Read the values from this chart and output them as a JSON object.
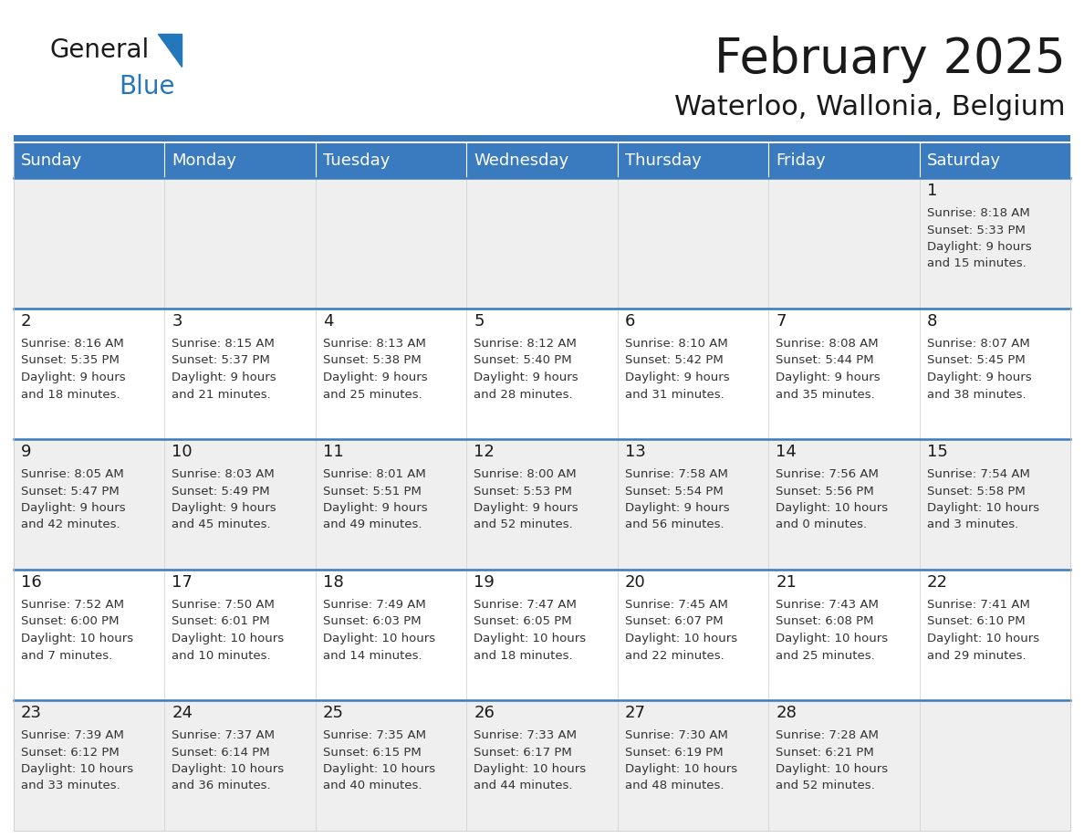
{
  "title": "February 2025",
  "subtitle": "Waterloo, Wallonia, Belgium",
  "header_color": "#3a7abf",
  "header_text_color": "#ffffff",
  "cell_bg_odd": "#efefef",
  "cell_bg_even": "#ffffff",
  "border_color": "#3a7abf",
  "cell_border_color": "#cccccc",
  "days_of_week": [
    "Sunday",
    "Monday",
    "Tuesday",
    "Wednesday",
    "Thursday",
    "Friday",
    "Saturday"
  ],
  "title_fontsize": 38,
  "subtitle_fontsize": 22,
  "header_fontsize": 13,
  "day_num_fontsize": 13,
  "info_fontsize": 9.5,
  "logo_color1": "#1a1a1a",
  "logo_color2": "#2577bb",
  "logo_triangle_color": "#2577bb",
  "weeks": [
    [
      {
        "day": 0,
        "info": ""
      },
      {
        "day": 0,
        "info": ""
      },
      {
        "day": 0,
        "info": ""
      },
      {
        "day": 0,
        "info": ""
      },
      {
        "day": 0,
        "info": ""
      },
      {
        "day": 0,
        "info": ""
      },
      {
        "day": 1,
        "info": "Sunrise: 8:18 AM\nSunset: 5:33 PM\nDaylight: 9 hours\nand 15 minutes."
      }
    ],
    [
      {
        "day": 2,
        "info": "Sunrise: 8:16 AM\nSunset: 5:35 PM\nDaylight: 9 hours\nand 18 minutes."
      },
      {
        "day": 3,
        "info": "Sunrise: 8:15 AM\nSunset: 5:37 PM\nDaylight: 9 hours\nand 21 minutes."
      },
      {
        "day": 4,
        "info": "Sunrise: 8:13 AM\nSunset: 5:38 PM\nDaylight: 9 hours\nand 25 minutes."
      },
      {
        "day": 5,
        "info": "Sunrise: 8:12 AM\nSunset: 5:40 PM\nDaylight: 9 hours\nand 28 minutes."
      },
      {
        "day": 6,
        "info": "Sunrise: 8:10 AM\nSunset: 5:42 PM\nDaylight: 9 hours\nand 31 minutes."
      },
      {
        "day": 7,
        "info": "Sunrise: 8:08 AM\nSunset: 5:44 PM\nDaylight: 9 hours\nand 35 minutes."
      },
      {
        "day": 8,
        "info": "Sunrise: 8:07 AM\nSunset: 5:45 PM\nDaylight: 9 hours\nand 38 minutes."
      }
    ],
    [
      {
        "day": 9,
        "info": "Sunrise: 8:05 AM\nSunset: 5:47 PM\nDaylight: 9 hours\nand 42 minutes."
      },
      {
        "day": 10,
        "info": "Sunrise: 8:03 AM\nSunset: 5:49 PM\nDaylight: 9 hours\nand 45 minutes."
      },
      {
        "day": 11,
        "info": "Sunrise: 8:01 AM\nSunset: 5:51 PM\nDaylight: 9 hours\nand 49 minutes."
      },
      {
        "day": 12,
        "info": "Sunrise: 8:00 AM\nSunset: 5:53 PM\nDaylight: 9 hours\nand 52 minutes."
      },
      {
        "day": 13,
        "info": "Sunrise: 7:58 AM\nSunset: 5:54 PM\nDaylight: 9 hours\nand 56 minutes."
      },
      {
        "day": 14,
        "info": "Sunrise: 7:56 AM\nSunset: 5:56 PM\nDaylight: 10 hours\nand 0 minutes."
      },
      {
        "day": 15,
        "info": "Sunrise: 7:54 AM\nSunset: 5:58 PM\nDaylight: 10 hours\nand 3 minutes."
      }
    ],
    [
      {
        "day": 16,
        "info": "Sunrise: 7:52 AM\nSunset: 6:00 PM\nDaylight: 10 hours\nand 7 minutes."
      },
      {
        "day": 17,
        "info": "Sunrise: 7:50 AM\nSunset: 6:01 PM\nDaylight: 10 hours\nand 10 minutes."
      },
      {
        "day": 18,
        "info": "Sunrise: 7:49 AM\nSunset: 6:03 PM\nDaylight: 10 hours\nand 14 minutes."
      },
      {
        "day": 19,
        "info": "Sunrise: 7:47 AM\nSunset: 6:05 PM\nDaylight: 10 hours\nand 18 minutes."
      },
      {
        "day": 20,
        "info": "Sunrise: 7:45 AM\nSunset: 6:07 PM\nDaylight: 10 hours\nand 22 minutes."
      },
      {
        "day": 21,
        "info": "Sunrise: 7:43 AM\nSunset: 6:08 PM\nDaylight: 10 hours\nand 25 minutes."
      },
      {
        "day": 22,
        "info": "Sunrise: 7:41 AM\nSunset: 6:10 PM\nDaylight: 10 hours\nand 29 minutes."
      }
    ],
    [
      {
        "day": 23,
        "info": "Sunrise: 7:39 AM\nSunset: 6:12 PM\nDaylight: 10 hours\nand 33 minutes."
      },
      {
        "day": 24,
        "info": "Sunrise: 7:37 AM\nSunset: 6:14 PM\nDaylight: 10 hours\nand 36 minutes."
      },
      {
        "day": 25,
        "info": "Sunrise: 7:35 AM\nSunset: 6:15 PM\nDaylight: 10 hours\nand 40 minutes."
      },
      {
        "day": 26,
        "info": "Sunrise: 7:33 AM\nSunset: 6:17 PM\nDaylight: 10 hours\nand 44 minutes."
      },
      {
        "day": 27,
        "info": "Sunrise: 7:30 AM\nSunset: 6:19 PM\nDaylight: 10 hours\nand 48 minutes."
      },
      {
        "day": 28,
        "info": "Sunrise: 7:28 AM\nSunset: 6:21 PM\nDaylight: 10 hours\nand 52 minutes."
      },
      {
        "day": 0,
        "info": ""
      }
    ]
  ]
}
